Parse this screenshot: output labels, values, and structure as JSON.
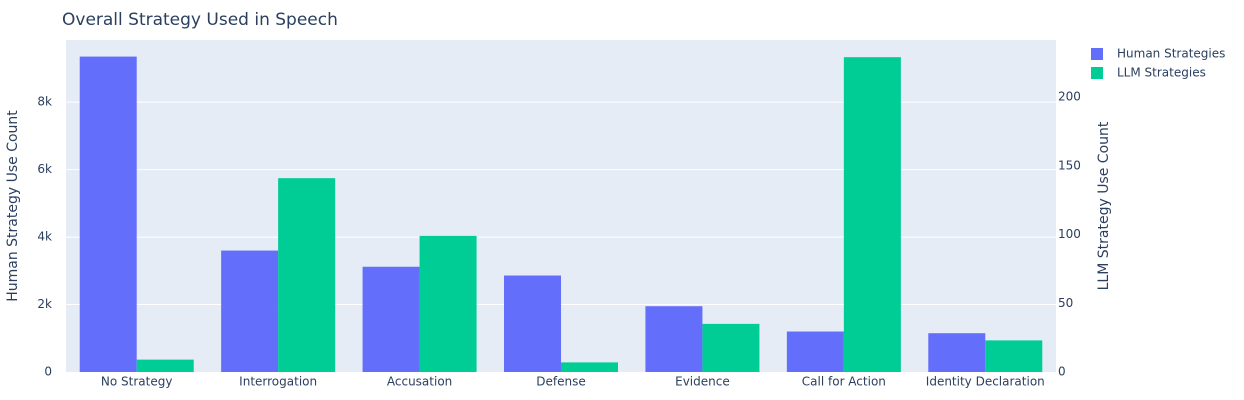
{
  "chart_data": {
    "type": "bar",
    "title": "Overall Strategy Used in Speech",
    "categories": [
      "No Strategy",
      "Interrogation",
      "Accusation",
      "Defense",
      "Evidence",
      "Call for Action",
      "Identity Declaration"
    ],
    "series": [
      {
        "name": "Human Strategies",
        "axis": "left",
        "color": "#636efa",
        "values": [
          9350,
          3600,
          3120,
          2860,
          1950,
          1200,
          1150
        ]
      },
      {
        "name": "LLM Strategies",
        "axis": "right",
        "color": "#00cc96",
        "values": [
          9,
          141,
          99,
          7,
          35,
          229,
          23
        ]
      }
    ],
    "ylabel": "Human Strategy Use Count",
    "ylabel_right": "LLM Strategy Use Count",
    "ylim": [
      0,
      9842
    ],
    "ylim_right": [
      0,
      241.5
    ],
    "yticks": [
      0,
      2000,
      4000,
      6000,
      8000
    ],
    "yticks_labels": [
      "0",
      "2k",
      "4k",
      "6k",
      "8k"
    ],
    "yticks_right": [
      0,
      50,
      100,
      150,
      200
    ],
    "yticks_right_labels": [
      "0",
      "50",
      "100",
      "150",
      "200"
    ],
    "grid": true,
    "legend": "top-right",
    "plot_background": "#e5ecf6"
  }
}
